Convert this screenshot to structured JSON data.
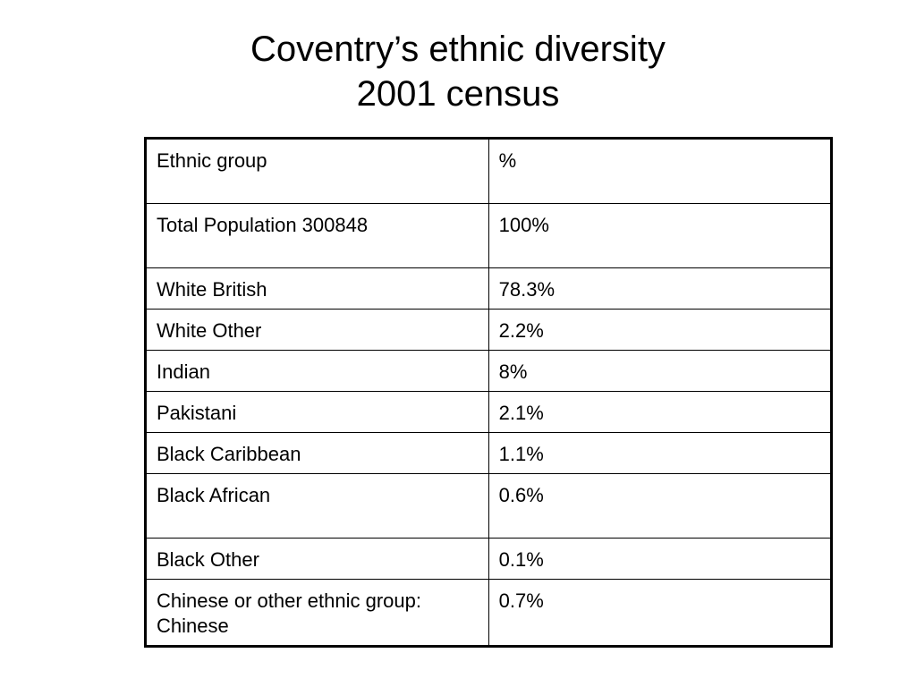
{
  "slide": {
    "title_line1": "Coventry’s ethnic diversity",
    "title_line2": "2001 census"
  },
  "table": {
    "headers": [
      "Ethnic group",
      "%"
    ],
    "rows": [
      {
        "group": "Total Population 300848",
        "percent": "100%"
      },
      {
        "group": "White British",
        "percent": "78.3%"
      },
      {
        "group": "White Other",
        "percent": "2.2%"
      },
      {
        "group": "Indian",
        "percent": "8%"
      },
      {
        "group": "Pakistani",
        "percent": "2.1%"
      },
      {
        "group": "Black Caribbean",
        "percent": "1.1%"
      },
      {
        "group": "Black African",
        "percent": "0.6%"
      },
      {
        "group": "Black Other",
        "percent": "0.1%"
      },
      {
        "group": "Chinese or other ethnic group: Chinese",
        "percent": "0.7%"
      }
    ]
  }
}
